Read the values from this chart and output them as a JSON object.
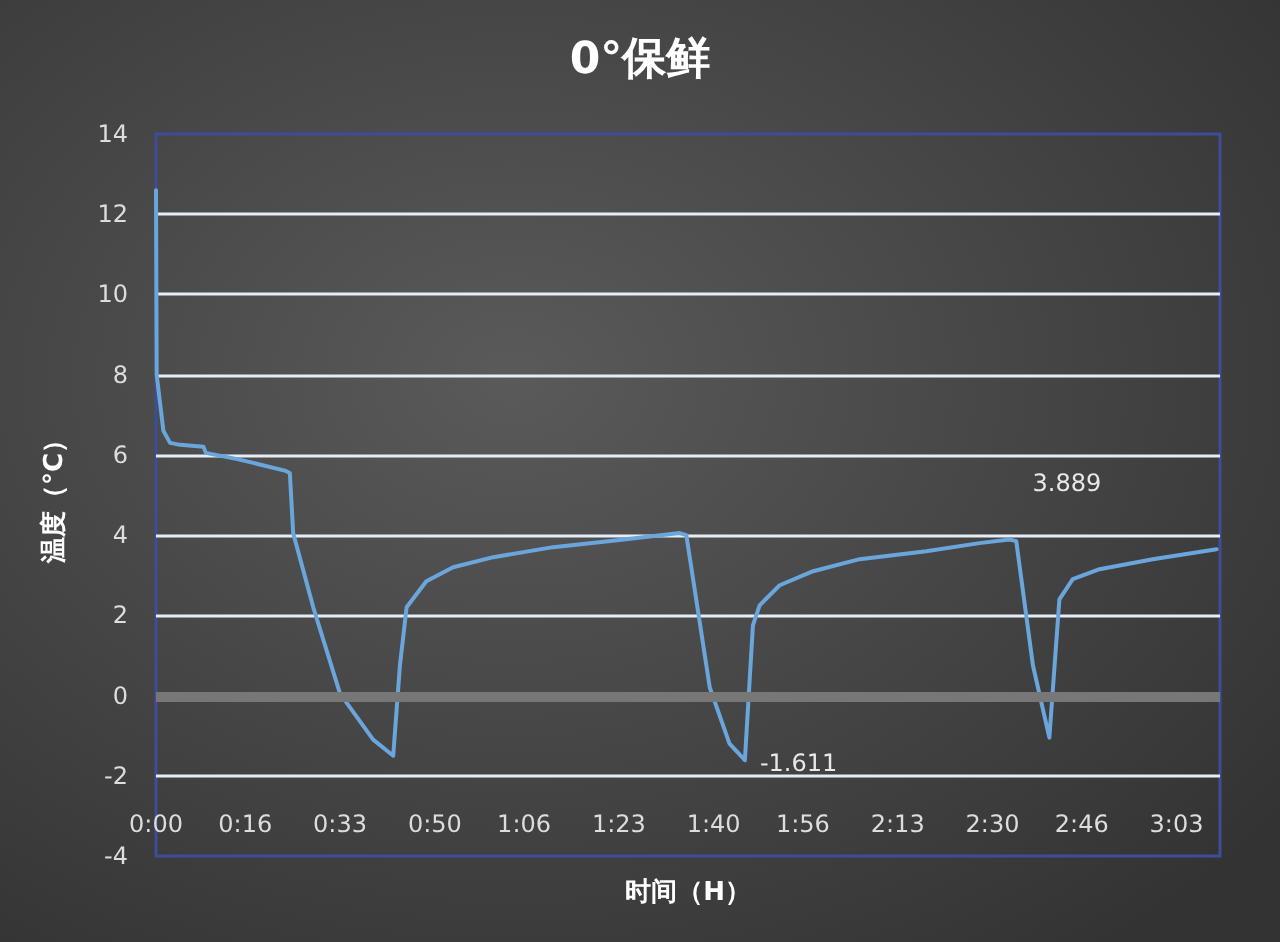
{
  "chart_data": {
    "type": "line",
    "title": "0°保鲜",
    "xlabel": "时间（H）",
    "ylabel": "温度（°C）",
    "x": [
      0,
      0.002,
      0.022,
      0.042,
      0.072,
      0.142,
      0.149,
      0.239,
      0.291,
      0.388,
      0.4,
      0.41,
      0.47,
      0.55,
      0.649,
      0.709,
      0.729,
      0.749,
      0.808,
      0.888,
      1.008,
      1.187,
      1.386,
      1.565,
      1.585,
      1.655,
      1.714,
      1.76,
      1.784,
      1.804,
      1.864,
      1.964,
      2.103,
      2.302,
      2.461,
      2.551,
      2.571,
      2.621,
      2.67,
      2.7,
      2.74,
      2.82,
      2.979,
      3.17
    ],
    "series": [
      {
        "color": "#6aa6dc",
        "values": [
          12.6,
          8,
          6.6,
          6.3,
          6.25,
          6.2,
          6.05,
          5.9,
          5.8,
          5.6,
          5.55,
          4.05,
          2.2,
          0.05,
          -1.1,
          -1.5,
          0.75,
          2.2,
          2.85,
          3.2,
          3.45,
          3.7,
          3.88,
          4.05,
          4,
          0.2,
          -1.2,
          -1.611,
          1.75,
          2.25,
          2.75,
          3.1,
          3.4,
          3.6,
          3.8,
          3.889,
          3.85,
          0.75,
          -1.05,
          2.4,
          2.9,
          3.15,
          3.4,
          3.65
        ]
      }
    ],
    "annotations": [
      {
        "text": "3.889",
        "x": 2.551,
        "y": 3.889
      },
      {
        "text": "-1.611",
        "x": 1.76,
        "y": -1.611
      }
    ],
    "xlim": [
      0,
      3.18
    ],
    "xticks": [
      {
        "value": 0,
        "label": "0:00"
      },
      {
        "value": 0.2667,
        "label": "0:16"
      },
      {
        "value": 0.55,
        "label": "0:33"
      },
      {
        "value": 0.8333,
        "label": "0:50"
      },
      {
        "value": 1.1,
        "label": "1:06"
      },
      {
        "value": 1.3833,
        "label": "1:23"
      },
      {
        "value": 1.6667,
        "label": "1:40"
      },
      {
        "value": 1.9333,
        "label": "1:56"
      },
      {
        "value": 2.2167,
        "label": "2:13"
      },
      {
        "value": 2.5,
        "label": "2:30"
      },
      {
        "value": 2.7667,
        "label": "2:46"
      },
      {
        "value": 3.05,
        "label": "3:03"
      }
    ],
    "ref_lines": [
      {
        "axis": "y",
        "value": 0,
        "color": "#777777"
      }
    ],
    "ylim": [
      -4,
      14
    ],
    "yticks": [
      -4,
      -2,
      0,
      2,
      4,
      6,
      8,
      10,
      12,
      14
    ],
    "grid": "y",
    "marker": "none",
    "line_style": "solid"
  }
}
